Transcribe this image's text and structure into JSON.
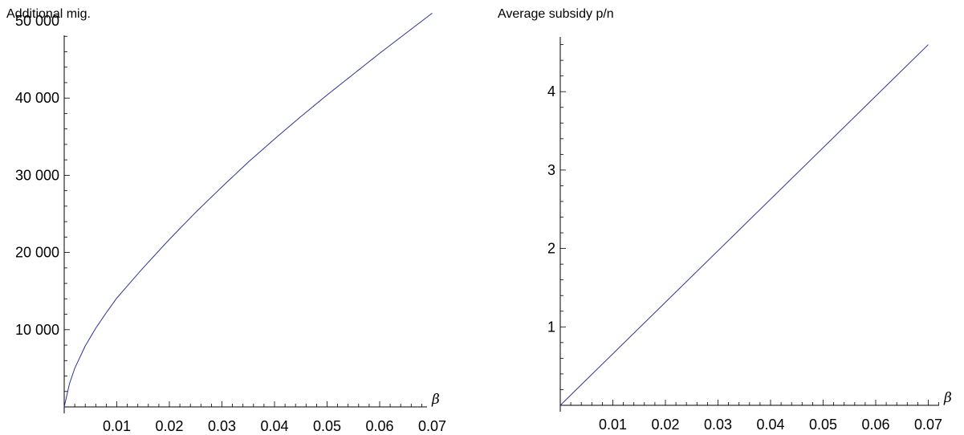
{
  "chart_data": [
    {
      "type": "line",
      "title": "",
      "ylabel": "Additional mig.",
      "xlabel": "β",
      "xlim": [
        0,
        0.07
      ],
      "ylim": [
        0,
        52000
      ],
      "grid": false,
      "legend": "none",
      "x_ticks": [
        "0.01",
        "0.02",
        "0.03",
        "0.04",
        "0.05",
        "0.06",
        "0.07"
      ],
      "y_ticks": [
        "10 000",
        "20 000",
        "30 000",
        "40 000",
        "50 000"
      ],
      "line_color": "#2e3192",
      "series": [
        {
          "x": [
            0,
            0.001,
            0.002,
            0.004,
            0.006,
            0.008,
            0.01,
            0.015,
            0.02,
            0.025,
            0.03,
            0.035,
            0.04,
            0.045,
            0.05,
            0.055,
            0.06,
            0.065,
            0.07
          ],
          "y": [
            0,
            3000,
            5000,
            7900,
            10200,
            12200,
            14100,
            18000,
            21700,
            25200,
            28500,
            31700,
            34700,
            37600,
            40400,
            43100,
            45800,
            48400,
            51000
          ]
        }
      ]
    },
    {
      "type": "line",
      "title": "",
      "ylabel": "Average subsidy p/n",
      "xlabel": "β",
      "xlim": [
        0,
        0.07
      ],
      "ylim": [
        0,
        4.6
      ],
      "grid": false,
      "legend": "none",
      "x_ticks": [
        "0.01",
        "0.02",
        "0.03",
        "0.04",
        "0.05",
        "0.06",
        "0.07"
      ],
      "y_ticks": [
        "1",
        "2",
        "3",
        "4"
      ],
      "line_color": "#2e3192",
      "series": [
        {
          "x": [
            0,
            0.07
          ],
          "y": [
            0,
            4.6
          ]
        }
      ]
    }
  ]
}
